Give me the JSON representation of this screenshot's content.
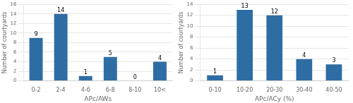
{
  "chart_data": [
    {
      "type": "bar",
      "categories": [
        "0-2",
        "2-4",
        "4-6",
        "6-8",
        "8-10",
        "10<"
      ],
      "values": [
        9,
        14,
        1,
        5,
        0,
        4
      ],
      "xlabel": "APc/AWs",
      "ylabel": "Number of courtyards",
      "ylim": [
        0,
        16
      ],
      "yticks": [
        0,
        2,
        4,
        6,
        8,
        10,
        12,
        14,
        16
      ],
      "color": "#2E6DA4",
      "grid": true,
      "data_labels": true
    },
    {
      "type": "bar",
      "categories": [
        "0-10",
        "10-20",
        "20-30",
        "30-40",
        "40-50"
      ],
      "values": [
        1,
        13,
        12,
        4,
        3
      ],
      "xlabel": "APc/ACy (%)",
      "ylabel": "Number of courtyards",
      "ylim": [
        0,
        14
      ],
      "yticks": [
        0,
        2,
        4,
        6,
        8,
        10,
        12,
        14
      ],
      "color": "#2E6DA4",
      "grid": true,
      "data_labels": true
    }
  ]
}
